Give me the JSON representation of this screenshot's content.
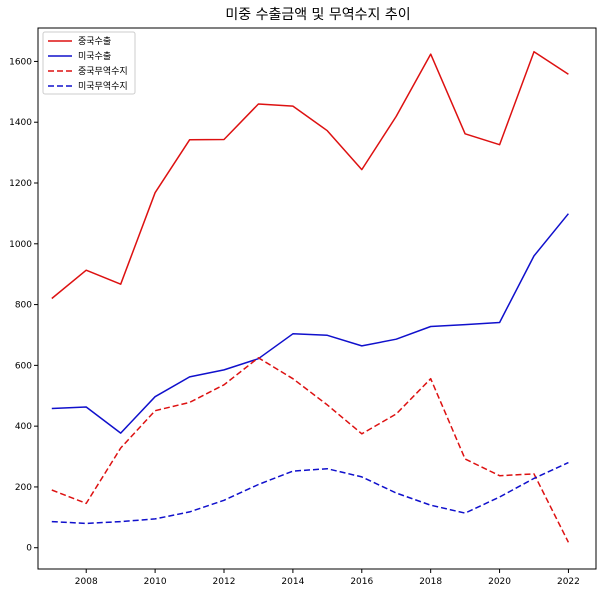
{
  "chart_data": {
    "type": "line",
    "title": "미중 수출금액 및 무역수지 추이",
    "xlabel": "",
    "ylabel": "",
    "x": [
      2007,
      2008,
      2009,
      2010,
      2011,
      2012,
      2013,
      2014,
      2015,
      2016,
      2017,
      2018,
      2019,
      2020,
      2021,
      2022
    ],
    "xlim": [
      2006.6,
      2022.8
    ],
    "ylim": [
      -70,
      1710
    ],
    "x_ticks": [
      2008,
      2010,
      2012,
      2014,
      2016,
      2018,
      2020,
      2022
    ],
    "y_ticks": [
      0,
      200,
      400,
      600,
      800,
      1000,
      1200,
      1400,
      1600
    ],
    "grid": false,
    "legend_position": "top-left",
    "series": [
      {
        "name": "중국수출",
        "color": "#dd1111",
        "style": "solid",
        "values": [
          820,
          913,
          867,
          1168,
          1342,
          1343,
          1460,
          1453,
          1372,
          1244,
          1419,
          1624,
          1362,
          1326,
          1632,
          1558
        ]
      },
      {
        "name": "미국수출",
        "color": "#1010cc",
        "style": "solid",
        "values": [
          458,
          463,
          377,
          497,
          562,
          585,
          622,
          704,
          699,
          664,
          686,
          728,
          734,
          741,
          960,
          1099
        ]
      },
      {
        "name": "중국무역수지",
        "color": "#dd1111",
        "style": "dashed",
        "values": [
          190,
          146,
          328,
          451,
          478,
          536,
          625,
          556,
          470,
          375,
          440,
          556,
          292,
          237,
          243,
          18
        ]
      },
      {
        "name": "미국무역수지",
        "color": "#1010cc",
        "style": "dashed",
        "values": [
          86,
          80,
          86,
          95,
          118,
          156,
          208,
          252,
          260,
          233,
          180,
          140,
          114,
          167,
          228,
          280
        ]
      }
    ]
  }
}
